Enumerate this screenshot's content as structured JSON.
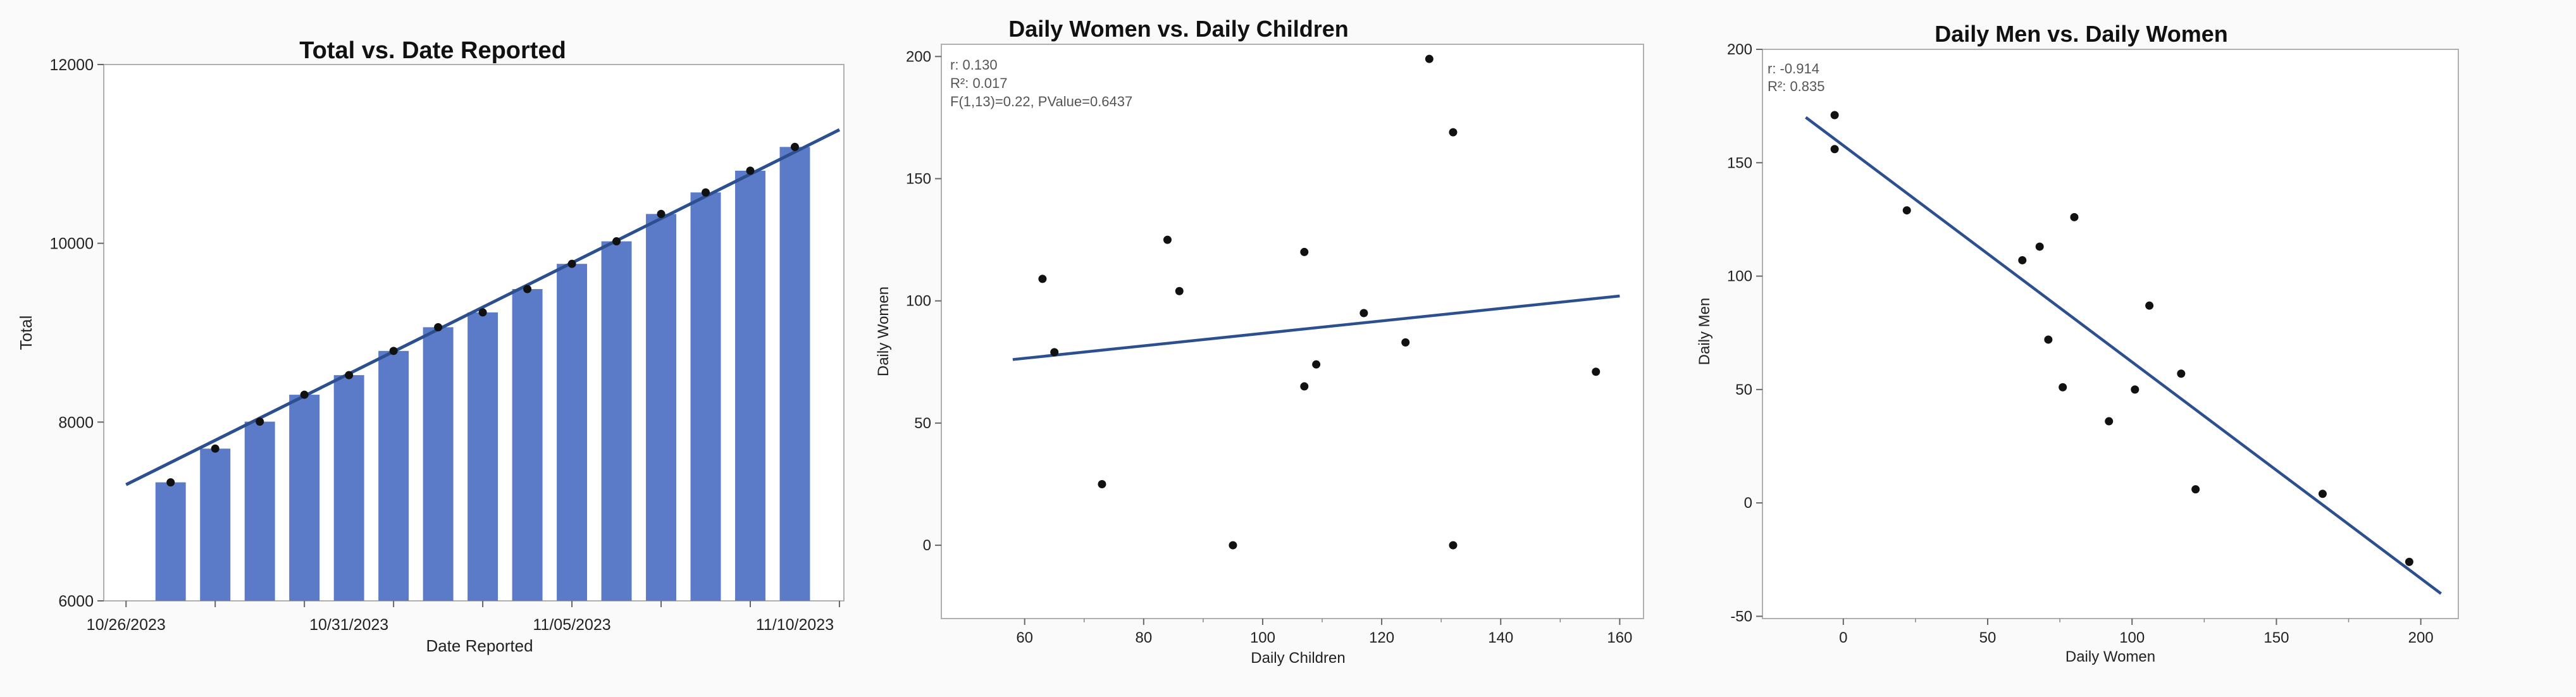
{
  "chart_data": [
    {
      "type": "bar",
      "title": "Total vs. Date Reported",
      "xlabel": "Date Reported",
      "ylabel": "Total",
      "ylim": [
        6000,
        12000
      ],
      "yticks": [
        "6000",
        "8000",
        "10000",
        "12000"
      ],
      "x_tick_labels": [
        "10/26/2023",
        "10/31/2023",
        "11/05/2023",
        "11/10/2023"
      ],
      "categories": [
        "10/27/2023",
        "10/28/2023",
        "10/29/2023",
        "10/30/2023",
        "10/31/2023",
        "11/01/2023",
        "11/02/2023",
        "11/03/2023",
        "11/04/2023",
        "11/05/2023",
        "11/06/2023",
        "11/07/2023",
        "11/08/2023",
        "11/09/2023",
        "11/10/2023"
      ],
      "values": [
        7326,
        7703,
        8005,
        8306,
        8525,
        8796,
        9061,
        9227,
        9488,
        9770,
        10022,
        10328,
        10569,
        10812,
        11078
      ],
      "fit_line": {
        "x_start": "10/26/2023",
        "y_start": 7300,
        "x_end": "11/11/2023",
        "y_end": 11270
      },
      "bar_color": "#5b7bc9",
      "point_color": "#111111",
      "line_color": "#2c4f8f",
      "grid": false
    },
    {
      "type": "scatter",
      "title": "Daily Women vs. Daily Children",
      "xlabel": "Daily Children",
      "ylabel": "Daily Women",
      "xlim": [
        46,
        164
      ],
      "ylim": [
        -30,
        205
      ],
      "xticks": [
        60,
        80,
        100,
        120,
        140,
        160
      ],
      "yticks": [
        0,
        50,
        100,
        150,
        200
      ],
      "annotations": [
        "r: 0.130",
        "R²: 0.017",
        "F(1,13)=0.22, PValue=0.6437"
      ],
      "points": [
        {
          "x": 63,
          "y": 109
        },
        {
          "x": 65,
          "y": 79
        },
        {
          "x": 73,
          "y": 25
        },
        {
          "x": 84,
          "y": 125
        },
        {
          "x": 86,
          "y": 104
        },
        {
          "x": 95,
          "y": 0
        },
        {
          "x": 107,
          "y": 120
        },
        {
          "x": 107,
          "y": 65
        },
        {
          "x": 109,
          "y": 74
        },
        {
          "x": 117,
          "y": 95
        },
        {
          "x": 124,
          "y": 83
        },
        {
          "x": 128,
          "y": 199
        },
        {
          "x": 132,
          "y": 169
        },
        {
          "x": 132,
          "y": 0
        },
        {
          "x": 156,
          "y": 71
        }
      ],
      "fit_line": {
        "x_start": 58,
        "y_start": 76,
        "x_end": 160,
        "y_end": 102
      },
      "point_color": "#111111",
      "line_color": "#2c4f8f",
      "grid": false
    },
    {
      "type": "scatter",
      "title": "Daily Men vs. Daily Women",
      "xlabel": "Daily Women",
      "ylabel": "Daily Men",
      "xlim": [
        -28,
        213
      ],
      "ylim": [
        -51,
        200
      ],
      "xticks": [
        0,
        50,
        100,
        150,
        200
      ],
      "yticks": [
        -50,
        0,
        50,
        100,
        150,
        200
      ],
      "annotations": [
        "r: -0.914",
        "R²: 0.835"
      ],
      "points": [
        {
          "x": -3,
          "y": 171
        },
        {
          "x": -3,
          "y": 156
        },
        {
          "x": 22,
          "y": 129
        },
        {
          "x": 62,
          "y": 107
        },
        {
          "x": 68,
          "y": 113
        },
        {
          "x": 80,
          "y": 126
        },
        {
          "x": 71,
          "y": 72
        },
        {
          "x": 76,
          "y": 51
        },
        {
          "x": 92,
          "y": 36
        },
        {
          "x": 101,
          "y": 50
        },
        {
          "x": 106,
          "y": 87
        },
        {
          "x": 117,
          "y": 57
        },
        {
          "x": 122,
          "y": 6
        },
        {
          "x": 166,
          "y": 4
        },
        {
          "x": 196,
          "y": -26
        }
      ],
      "fit_line": {
        "x_start": -13,
        "y_start": 170,
        "x_end": 207,
        "y_end": -40
      },
      "point_color": "#111111",
      "line_color": "#2c4f8f",
      "grid": false
    }
  ]
}
